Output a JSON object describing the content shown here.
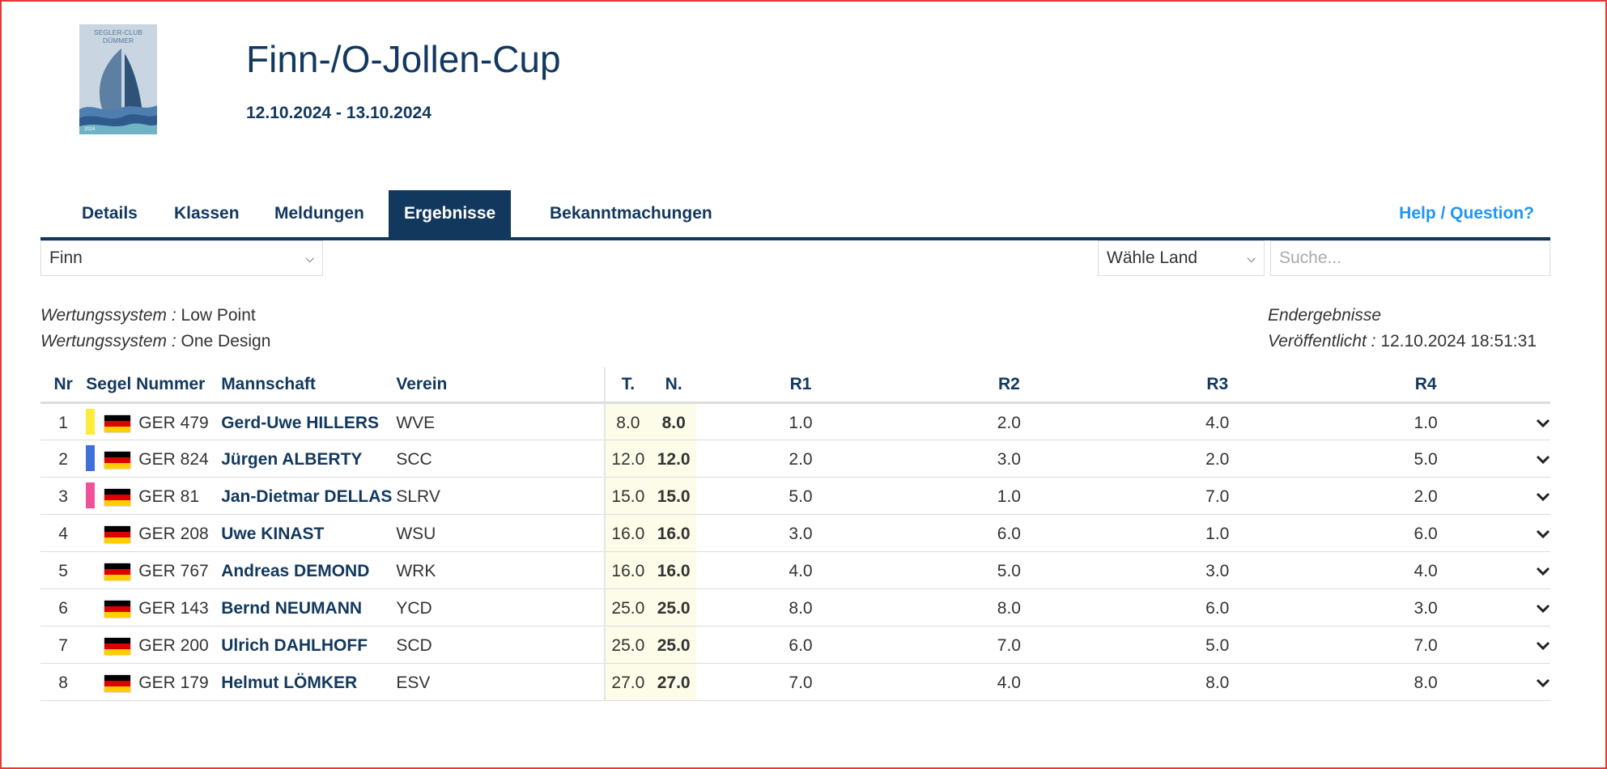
{
  "logo": {
    "line1": "SEGLER-CLUB",
    "line2": "DÜMMER",
    "year": "2024"
  },
  "header": {
    "title": "Finn-/O-Jollen-Cup",
    "dates": "12.10.2024 - 13.10.2024"
  },
  "nav": {
    "tabs": [
      {
        "label": "Details",
        "active": false
      },
      {
        "label": "Klassen",
        "active": false
      },
      {
        "label": "Meldungen",
        "active": false
      },
      {
        "label": "Ergebnisse",
        "active": true
      },
      {
        "label": "Bekanntmachungen",
        "active": false
      }
    ],
    "help": "Help / Question?"
  },
  "filters": {
    "class_value": "Finn",
    "country_value": "Wähle Land",
    "search_placeholder": "Suche..."
  },
  "meta": {
    "scoring_label": "Wertungssystem :",
    "scoring_1": "Low Point",
    "scoring_2": "One Design",
    "status": "Endergebnisse",
    "published_label": "Veröffentlicht :",
    "published_value": "12.10.2024 18:51:31"
  },
  "table": {
    "headers": {
      "nr": "Nr",
      "sail": "Segel Nummer",
      "team": "Mannschaft",
      "club": "Verein",
      "total": "T.",
      "net": "N.",
      "r1": "R1",
      "r2": "R2",
      "r3": "R3",
      "r4": "R4"
    },
    "rows": [
      {
        "nr": "1",
        "medal": "#ffeb3b",
        "sail": "GER 479",
        "team": "Gerd-Uwe HILLERS",
        "club": "WVE",
        "total": "8.0",
        "net": "8.0",
        "r1": "1.0",
        "r2": "2.0",
        "r3": "4.0",
        "r4": "1.0"
      },
      {
        "nr": "2",
        "medal": "#3f6fd8",
        "sail": "GER 824",
        "team": "Jürgen ALBERTY",
        "club": "SCC",
        "total": "12.0",
        "net": "12.0",
        "r1": "2.0",
        "r2": "3.0",
        "r3": "2.0",
        "r4": "5.0"
      },
      {
        "nr": "3",
        "medal": "#f0509a",
        "sail": "GER 81",
        "team": "Jan-Dietmar DELLAS",
        "club": "SLRV",
        "total": "15.0",
        "net": "15.0",
        "r1": "5.0",
        "r2": "1.0",
        "r3": "7.0",
        "r4": "2.0"
      },
      {
        "nr": "4",
        "medal": "",
        "sail": "GER 208",
        "team": "Uwe KINAST",
        "club": "WSU",
        "total": "16.0",
        "net": "16.0",
        "r1": "3.0",
        "r2": "6.0",
        "r3": "1.0",
        "r4": "6.0"
      },
      {
        "nr": "5",
        "medal": "",
        "sail": "GER 767",
        "team": "Andreas DEMOND",
        "club": "WRK",
        "total": "16.0",
        "net": "16.0",
        "r1": "4.0",
        "r2": "5.0",
        "r3": "3.0",
        "r4": "4.0"
      },
      {
        "nr": "6",
        "medal": "",
        "sail": "GER 143",
        "team": "Bernd NEUMANN",
        "club": "YCD",
        "total": "25.0",
        "net": "25.0",
        "r1": "8.0",
        "r2": "8.0",
        "r3": "6.0",
        "r4": "3.0"
      },
      {
        "nr": "7",
        "medal": "",
        "sail": "GER 200",
        "team": "Ulrich DAHLHOFF",
        "club": "SCD",
        "total": "25.0",
        "net": "25.0",
        "r1": "6.0",
        "r2": "7.0",
        "r3": "5.0",
        "r4": "7.0"
      },
      {
        "nr": "8",
        "medal": "",
        "sail": "GER 179",
        "team": "Helmut LÖMKER",
        "club": "ESV",
        "total": "27.0",
        "net": "27.0",
        "r1": "7.0",
        "r2": "4.0",
        "r3": "8.0",
        "r4": "8.0"
      }
    ]
  },
  "colors": {
    "primary": "#12385e",
    "link": "#2196f3",
    "highlight": "#fdfce8"
  },
  "icons": {
    "flag": "germany-flag-icon",
    "expand": "chevron-down-icon",
    "select": "chevron-down-icon"
  }
}
